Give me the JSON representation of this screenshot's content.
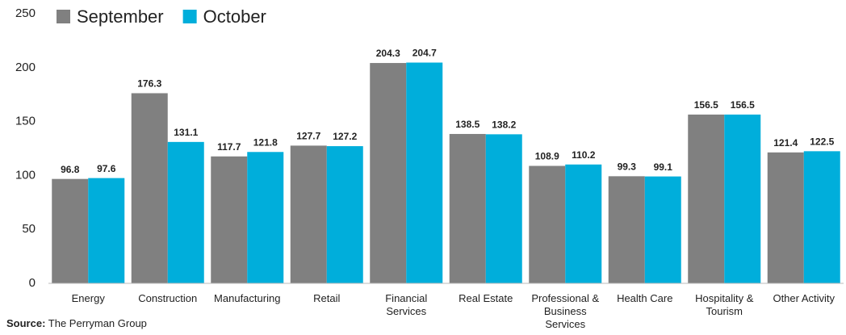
{
  "chart_data": {
    "type": "bar",
    "categories": [
      "Energy",
      "Construction",
      "Manufacturing",
      "Retail",
      "Financial Services",
      "Real Estate",
      "Professional & Business Services",
      "Health Care",
      "Hospitality & Tourism",
      "Other Activity"
    ],
    "series": [
      {
        "name": "September",
        "color": "#808080",
        "values": [
          96.8,
          176.3,
          117.7,
          127.7,
          204.3,
          138.5,
          108.9,
          99.3,
          156.5,
          121.4
        ]
      },
      {
        "name": "October",
        "color": "#00aedb",
        "values": [
          97.6,
          131.1,
          121.8,
          127.2,
          204.7,
          138.2,
          110.2,
          99.1,
          156.5,
          122.5
        ]
      }
    ],
    "ylim": [
      0,
      250
    ],
    "yticks": [
      0,
      50,
      100,
      150,
      200,
      250
    ],
    "grid": false,
    "legend": "top-left",
    "source_label": "Source:",
    "source_text": "The Perryman Group"
  }
}
